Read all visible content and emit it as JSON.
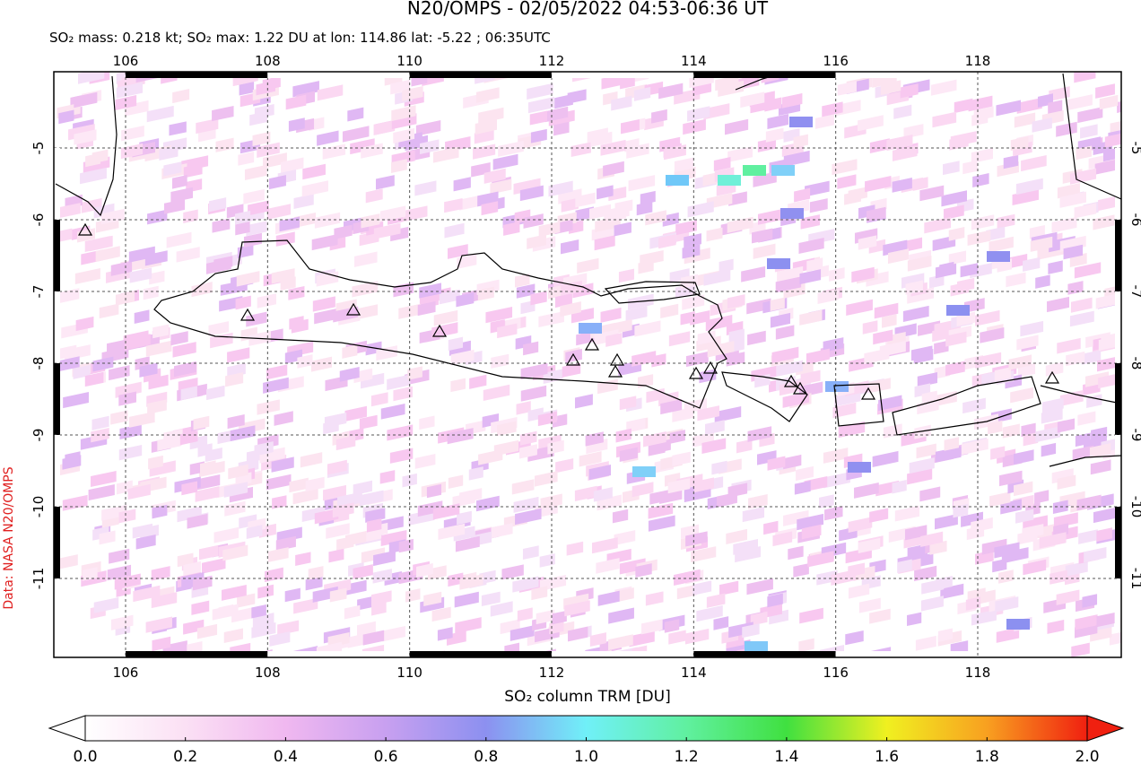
{
  "header": {
    "title": "N20/OMPS - 02/05/2022 04:53-06:36 UT",
    "subtitle": "SO₂ mass: 0.218 kt; SO₂ max: 1.22 DU at lon: 114.86 lat: -5.22 ; 06:35UTC"
  },
  "map": {
    "lon_ticks": [
      106,
      108,
      110,
      112,
      114,
      116,
      118
    ],
    "lat_ticks": [
      -5,
      -6,
      -7,
      -8,
      -9,
      -10,
      -11
    ]
  },
  "colorbar": {
    "label": "SO₂ column TRM [DU]",
    "ticks": [
      {
        "value": 0,
        "label": "0.0"
      },
      {
        "value": 0.2,
        "label": "0.2"
      },
      {
        "value": 0.4,
        "label": "0.4"
      },
      {
        "value": 0.6,
        "label": "0.6"
      },
      {
        "value": 0.8,
        "label": "0.8"
      },
      {
        "value": 1,
        "label": "1.0"
      },
      {
        "value": 1.2,
        "label": "1.2"
      },
      {
        "value": 1.4,
        "label": "1.4"
      },
      {
        "value": 1.6,
        "label": "1.6"
      },
      {
        "value": 1.8,
        "label": "1.8"
      },
      {
        "value": 2,
        "label": "2.0"
      }
    ]
  },
  "credit": "Data: NASA N20/OMPS"
}
